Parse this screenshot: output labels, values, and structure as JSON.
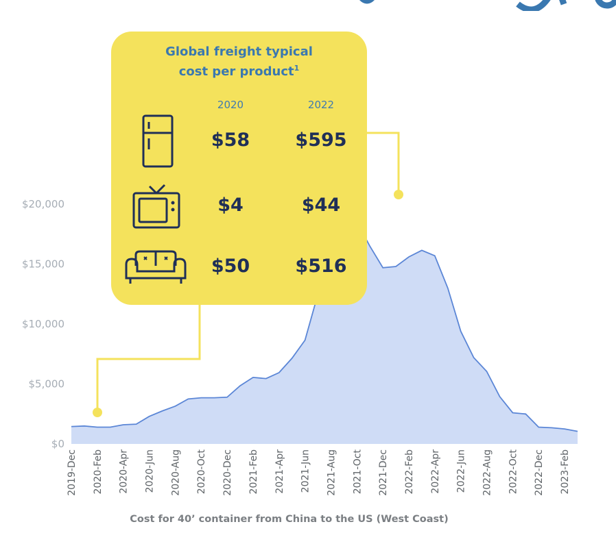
{
  "card": {
    "title_line1": "Global freight typical",
    "title_line2": "cost per product",
    "title_footnote": "1",
    "year_2020": "2020",
    "year_2022": "2022",
    "rows": [
      {
        "icon": "refrigerator-icon",
        "v2020": "$58",
        "v2022": "$595"
      },
      {
        "icon": "television-icon",
        "v2020": "$4",
        "v2022": "$44"
      },
      {
        "icon": "sofa-icon",
        "v2020": "$50",
        "v2022": "$516"
      }
    ]
  },
  "caption": "Cost for 40’ container from China to the US (West Coast)",
  "colors": {
    "area_fill": "#cfdcf6",
    "line": "#5b86d6",
    "card": "#f4e25c",
    "connector": "#f4e25c",
    "card_title": "#3a78b0",
    "card_values": "#1f2f57"
  },
  "chart_data": {
    "type": "area",
    "title": "",
    "xlabel": "Cost for 40’ container from China to the US (West Coast)",
    "ylabel": "",
    "ylim": [
      0,
      20000
    ],
    "y_ticks": [
      0,
      5000,
      10000,
      15000,
      20000
    ],
    "y_tick_labels": [
      "$0",
      "$5,000",
      "$10,000",
      "$15,000",
      "$20,000"
    ],
    "x_tick_labels": [
      "2019-Dec",
      "2020-Feb",
      "2020-Apr",
      "2020-Jun",
      "2020-Aug",
      "2020-Oct",
      "2020-Dec",
      "2021-Feb",
      "2021-Apr",
      "2021-Jun",
      "2021-Aug",
      "2021-Oct",
      "2021-Dec",
      "2022-Feb",
      "2022-Apr",
      "2022-Jun",
      "2022-Aug",
      "2022-Oct",
      "2022-Dec",
      "2023-Feb"
    ],
    "grid": false,
    "series": [
      {
        "x": [
          "2019-Dec",
          "2020-Jan",
          "2020-Feb",
          "2020-Mar",
          "2020-Apr",
          "2020-May",
          "2020-Jun",
          "2020-Jul",
          "2020-Aug",
          "2020-Sep",
          "2020-Oct",
          "2020-Nov",
          "2020-Dec",
          "2021-Jan",
          "2021-Feb",
          "2021-Mar",
          "2021-Apr",
          "2021-May",
          "2021-Jun",
          "2021-Jul",
          "2021-Aug",
          "2021-Sep",
          "2021-Oct",
          "2021-Nov",
          "2021-Dec",
          "2022-Jan",
          "2022-Feb",
          "2022-Mar",
          "2022-Apr",
          "2022-May",
          "2022-Jun",
          "2022-Jul",
          "2022-Aug",
          "2022-Sep",
          "2022-Oct",
          "2022-Nov",
          "2022-Dec",
          "2023-Jan",
          "2023-Feb",
          "2023-Mar"
        ],
        "y": [
          1450,
          1500,
          1400,
          1400,
          1600,
          1650,
          2300,
          2750,
          3150,
          3750,
          3850,
          3850,
          3900,
          4850,
          5550,
          5450,
          5950,
          7150,
          8650,
          12500,
          17400,
          19700,
          18500,
          16500,
          14700,
          14800,
          15600,
          16150,
          15700,
          13000,
          9400,
          7200,
          6050,
          3950,
          2600,
          2500,
          1400,
          1350,
          1250,
          1050
        ]
      }
    ]
  }
}
